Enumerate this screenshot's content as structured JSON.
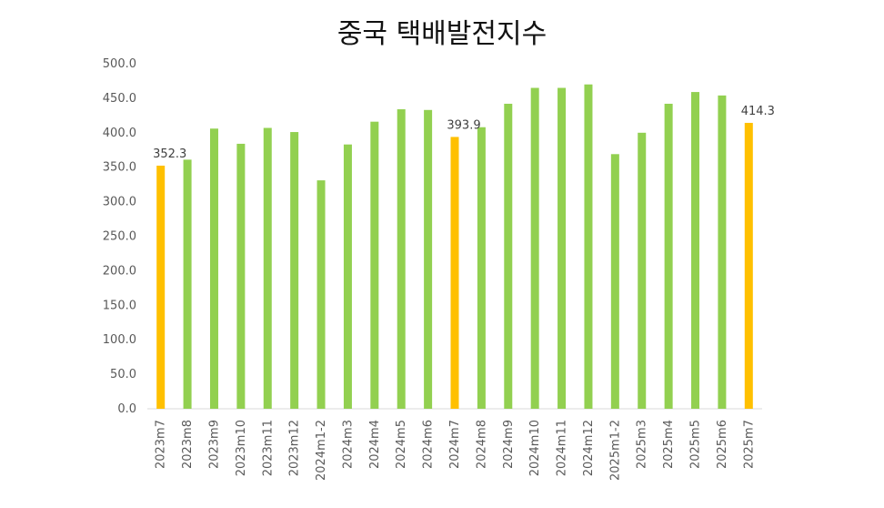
{
  "chart_data": {
    "type": "bar",
    "title": "중국 택배발전지수",
    "categories": [
      "2023m7",
      "2023m8",
      "2023m9",
      "2023m10",
      "2023m11",
      "2023m12",
      "2024m1-2",
      "2024m3",
      "2024m4",
      "2024m5",
      "2024m6",
      "2024m7",
      "2024m8",
      "2024m9",
      "2024m10",
      "2024m11",
      "2024m12",
      "2025m1-2",
      "2025m3",
      "2025m4",
      "2025m5",
      "2025m6",
      "2025m7"
    ],
    "values": [
      352.3,
      361,
      406,
      384,
      407,
      401,
      331,
      383,
      416,
      434,
      433,
      393.9,
      408,
      442,
      465,
      465,
      470,
      369,
      400,
      442,
      459,
      454,
      414.3
    ],
    "highlight_indices": [
      0,
      11,
      22
    ],
    "data_labels": [
      {
        "index": 0,
        "text": "352.3"
      },
      {
        "index": 11,
        "text": "393.9"
      },
      {
        "index": 22,
        "text": "414.3"
      }
    ],
    "ylim": [
      0,
      500
    ],
    "yticks": [
      "0.0",
      "50.0",
      "100.0",
      "150.0",
      "200.0",
      "250.0",
      "300.0",
      "350.0",
      "400.0",
      "450.0",
      "500.0"
    ],
    "ytick_values": [
      0,
      50,
      100,
      150,
      200,
      250,
      300,
      350,
      400,
      450,
      500
    ],
    "colors": {
      "bar": "#92d050",
      "highlight": "#ffc000",
      "axis": "#d9d9d9"
    },
    "grid": false,
    "legend": "none"
  }
}
